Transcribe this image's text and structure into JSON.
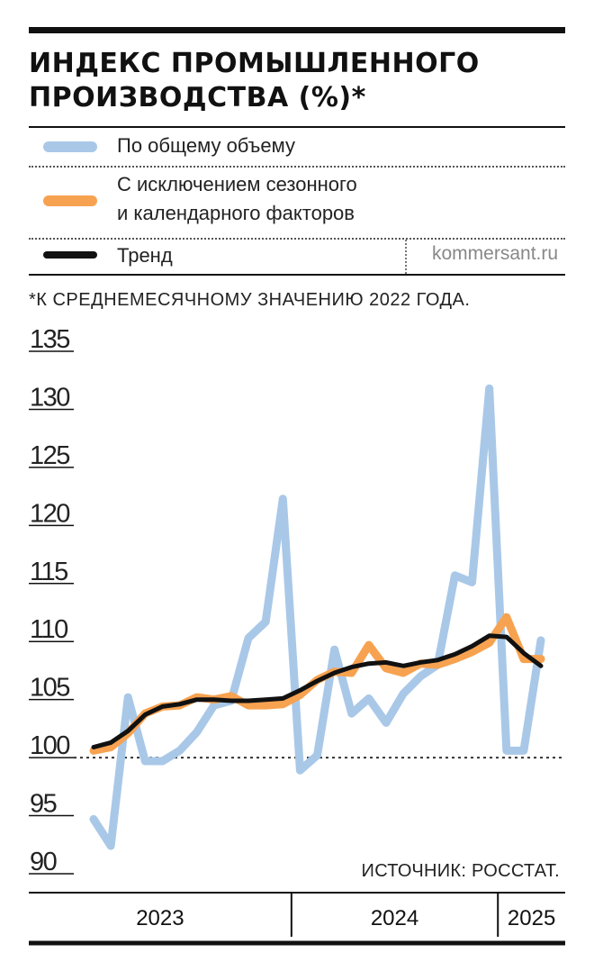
{
  "header": {
    "title_line1": "ИНДЕКС ПРОМЫШЛЕННОГО",
    "title_line2": "ПРОИЗВОДСТВА (%)*"
  },
  "legend": [
    {
      "label": "По общему объему",
      "color": "#a9c8e8"
    },
    {
      "label_line1": "С исключением сезонного",
      "label_line2": "и календарного факторов",
      "color": "#f7a250"
    },
    {
      "label": "Тренд",
      "color": "#111111"
    }
  ],
  "credit": "kommersant.ru",
  "note": "*К СРЕДНЕМЕСЯЧНОМУ ЗНАЧЕНИЮ 2022 ГОДА.",
  "source": "ИСТОЧНИК: РОССТАТ.",
  "chart_data": {
    "type": "line",
    "title": "ИНДЕКС ПРОМЫШЛЕННОГО ПРОИЗВОДСТВА (%)*",
    "x": [
      "2023-01",
      "2023-02",
      "2023-03",
      "2023-04",
      "2023-05",
      "2023-06",
      "2023-07",
      "2023-08",
      "2023-09",
      "2023-10",
      "2023-11",
      "2023-12",
      "2024-01",
      "2024-02",
      "2024-03",
      "2024-04",
      "2024-05",
      "2024-06",
      "2024-07",
      "2024-08",
      "2024-09",
      "2024-10",
      "2024-11",
      "2024-12",
      "2025-01",
      "2025-02",
      "2025-03"
    ],
    "x_groups": [
      "2023",
      "2024",
      "2025"
    ],
    "ylim": [
      90,
      135
    ],
    "yticks": [
      90,
      95,
      100,
      105,
      110,
      115,
      120,
      125,
      130,
      135
    ],
    "reference_line": 100,
    "series": [
      {
        "name": "По общему объему",
        "color": "#a9c8e8",
        "values": [
          94.7,
          92.4,
          105.2,
          99.7,
          99.7,
          100.6,
          102.2,
          104.5,
          104.9,
          110.3,
          111.7,
          122.3,
          98.9,
          100.2,
          109.3,
          103.8,
          105.1,
          103.0,
          105.5,
          107.0,
          108.0,
          115.7,
          115.1,
          131.8,
          100.6,
          100.6,
          110.1
        ]
      },
      {
        "name": "С исключением сезонного и календарного факторов",
        "color": "#f7a250",
        "values": [
          100.6,
          100.9,
          102.1,
          103.8,
          104.4,
          104.5,
          105.2,
          105.0,
          105.3,
          104.5,
          104.5,
          104.6,
          105.4,
          106.7,
          107.4,
          107.3,
          109.7,
          107.7,
          107.3,
          108.1,
          108.0,
          108.5,
          109.1,
          109.9,
          112.1,
          108.5,
          108.5
        ]
      },
      {
        "name": "Тренд",
        "color": "#111111",
        "values": [
          100.9,
          101.3,
          102.3,
          103.7,
          104.4,
          104.6,
          105.0,
          105.0,
          104.9,
          104.9,
          105.0,
          105.1,
          105.8,
          106.6,
          107.3,
          107.8,
          108.1,
          108.2,
          107.9,
          108.2,
          108.4,
          108.9,
          109.6,
          110.5,
          110.4,
          109.0,
          107.9
        ]
      }
    ]
  }
}
